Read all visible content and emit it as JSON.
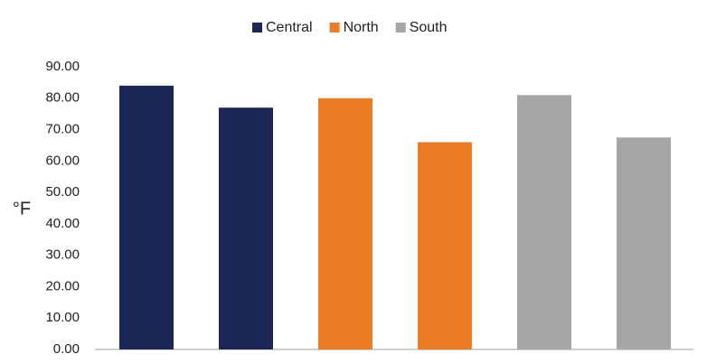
{
  "chart_data": {
    "type": "bar",
    "categories": [
      null,
      null,
      null,
      null,
      null,
      null
    ],
    "series": [
      {
        "name": "Central",
        "color": "#1c2755",
        "values": [
          84,
          77,
          null,
          null,
          null,
          null
        ]
      },
      {
        "name": "North",
        "color": "#ea7c26",
        "values": [
          null,
          null,
          80,
          66,
          null,
          null
        ]
      },
      {
        "name": "South",
        "color": "#a6a6a6",
        "values": [
          null,
          null,
          null,
          null,
          81,
          67.5
        ]
      }
    ],
    "y_label": "°F",
    "ylim": [
      0,
      90
    ],
    "yticks": [
      {
        "value": 0,
        "label": "0.00"
      },
      {
        "value": 10,
        "label": "10.00"
      },
      {
        "value": 20,
        "label": "20.00"
      },
      {
        "value": 30,
        "label": "30.00"
      },
      {
        "value": 40,
        "label": "40.00"
      },
      {
        "value": 50,
        "label": "50.00"
      },
      {
        "value": 60,
        "label": "60.00"
      },
      {
        "value": 70,
        "label": "70.00"
      },
      {
        "value": 80,
        "label": "80.00"
      },
      {
        "value": 90,
        "label": "90.00"
      }
    ],
    "grid": false,
    "legend": "top"
  }
}
